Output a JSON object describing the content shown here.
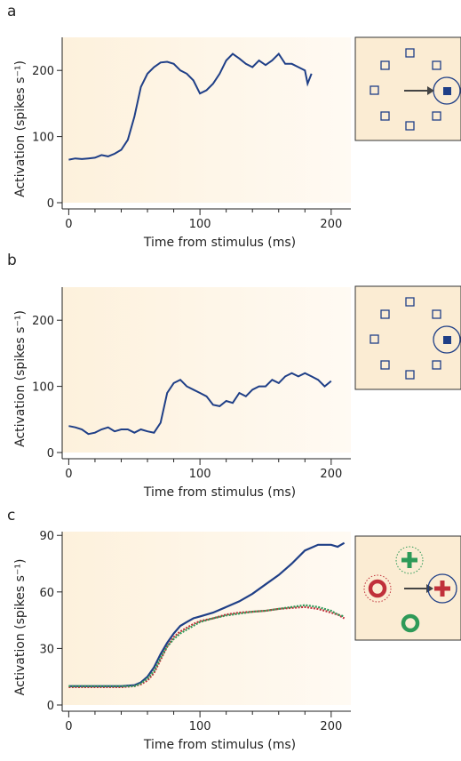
{
  "chart_data": [
    {
      "type": "line",
      "panel_label": "a",
      "xlabel": "Time from stimulus (ms)",
      "ylabel": "Activation (spikes s⁻¹)",
      "xlim": [
        -5,
        215
      ],
      "ylim": [
        0,
        250
      ],
      "xticks": [
        0,
        100,
        200
      ],
      "xminorticks": [
        20,
        40,
        60,
        80,
        120,
        140,
        160,
        180
      ],
      "yticks": [
        0,
        100,
        200
      ],
      "x": [
        0,
        5,
        10,
        15,
        20,
        25,
        30,
        35,
        40,
        45,
        50,
        55,
        60,
        65,
        70,
        75,
        80,
        85,
        90,
        95,
        100,
        105,
        110,
        115,
        120,
        125,
        130,
        135,
        140,
        145,
        150,
        155,
        160,
        165,
        170,
        175,
        180,
        182,
        185
      ],
      "series": [
        {
          "color": "#1f3f87",
          "values": [
            65,
            67,
            66,
            67,
            68,
            72,
            70,
            74,
            80,
            95,
            130,
            175,
            195,
            205,
            212,
            213,
            210,
            200,
            195,
            185,
            165,
            170,
            180,
            195,
            215,
            225,
            218,
            210,
            205,
            215,
            208,
            215,
            225,
            210,
            210,
            205,
            200,
            180,
            195
          ]
        }
      ]
    },
    {
      "type": "line",
      "panel_label": "b",
      "xlabel": "Time from stimulus (ms)",
      "ylabel": "Activation (spikes s⁻¹)",
      "xlim": [
        -5,
        215
      ],
      "ylim": [
        0,
        250
      ],
      "xticks": [
        0,
        100,
        200
      ],
      "xminorticks": [
        20,
        40,
        60,
        80,
        120,
        140,
        160,
        180
      ],
      "yticks": [
        0,
        100,
        200
      ],
      "x": [
        0,
        5,
        10,
        15,
        20,
        25,
        30,
        35,
        40,
        45,
        50,
        55,
        60,
        65,
        70,
        75,
        80,
        85,
        90,
        95,
        100,
        105,
        110,
        115,
        120,
        125,
        130,
        135,
        140,
        145,
        150,
        155,
        160,
        165,
        170,
        175,
        180,
        185,
        190,
        195,
        200
      ],
      "series": [
        {
          "color": "#1f3f87",
          "values": [
            40,
            38,
            35,
            28,
            30,
            35,
            38,
            32,
            35,
            35,
            30,
            35,
            32,
            30,
            45,
            90,
            105,
            110,
            100,
            95,
            90,
            85,
            72,
            70,
            78,
            75,
            90,
            85,
            95,
            100,
            100,
            110,
            105,
            115,
            120,
            115,
            120,
            115,
            110,
            100,
            108
          ]
        }
      ]
    },
    {
      "type": "line",
      "panel_label": "c",
      "xlabel": "Time from stimulus (ms)",
      "ylabel": "Activation (spikes s⁻¹)",
      "xlim": [
        -5,
        215
      ],
      "ylim": [
        0,
        92
      ],
      "xticks": [
        0,
        100,
        200
      ],
      "xminorticks": [
        20,
        40,
        60,
        80,
        120,
        140,
        160,
        180
      ],
      "yticks": [
        0,
        30,
        60,
        90
      ],
      "x": [
        0,
        10,
        20,
        30,
        40,
        50,
        55,
        60,
        65,
        70,
        75,
        80,
        85,
        90,
        95,
        100,
        110,
        120,
        130,
        140,
        150,
        160,
        170,
        180,
        190,
        200,
        205,
        210
      ],
      "series": [
        {
          "color": "#1f3f87",
          "values": [
            10,
            10,
            10,
            10,
            10,
            10.5,
            12,
            15,
            20,
            27,
            33,
            38,
            42,
            44,
            46,
            47,
            49,
            52,
            55,
            59,
            64,
            69,
            75,
            82,
            85,
            85,
            84,
            86
          ]
        },
        {
          "color": "#c0303a",
          "values": [
            9.5,
            9.5,
            9.5,
            9.5,
            9.5,
            10,
            11,
            13,
            17,
            24,
            31,
            36,
            39,
            41,
            43,
            44.5,
            46,
            48,
            49,
            49.5,
            50,
            51,
            51.5,
            52,
            51,
            49,
            48,
            46
          ]
        },
        {
          "color": "#2e9a58",
          "values": [
            10,
            10,
            10,
            10,
            10,
            10,
            11.5,
            14,
            18,
            25,
            31,
            35,
            38,
            40,
            42,
            44,
            46,
            47.5,
            48.5,
            49.5,
            50,
            51,
            52,
            53,
            52,
            50,
            48,
            47
          ]
        }
      ]
    }
  ]
}
